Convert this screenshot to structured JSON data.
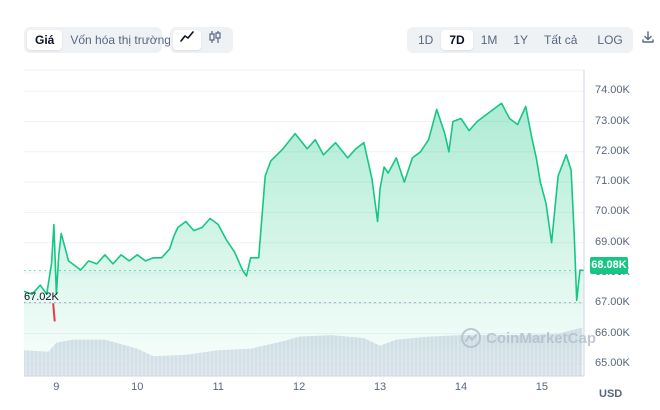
{
  "tabs_left": [
    {
      "label": "Giá",
      "active": true
    },
    {
      "label": "Vốn hóa thị trường",
      "active": false
    }
  ],
  "chart_type_icons": [
    "line-chart-icon",
    "candlestick-icon"
  ],
  "ranges": [
    {
      "label": "1D",
      "active": false
    },
    {
      "label": "7D",
      "active": true
    },
    {
      "label": "1M",
      "active": false
    },
    {
      "label": "1Y",
      "active": false
    },
    {
      "label": "Tất cả",
      "active": false
    }
  ],
  "log_label": "LOG",
  "download_icon": "download-icon",
  "current_price_label": "68.08K",
  "min_price_label": "67.02K",
  "currency_unit": "USD",
  "watermark": "CoinMarketCap",
  "colors": {
    "line": "#16c784",
    "dip": "#ea3943",
    "volume": "#cfd6e4",
    "badge": "#16c784"
  },
  "chart_data": {
    "type": "area",
    "y_unit": "K",
    "ylim": [
      64.6,
      74.7
    ],
    "y_ticks": [
      {
        "value": 74,
        "label": "74.00K"
      },
      {
        "value": 73,
        "label": "73.00K"
      },
      {
        "value": 72,
        "label": "72.00K"
      },
      {
        "value": 71,
        "label": "71.00K"
      },
      {
        "value": 70,
        "label": "70.00K"
      },
      {
        "value": 69,
        "label": "69.00K"
      },
      {
        "value": 68,
        "label": "68.00K"
      },
      {
        "value": 67,
        "label": "67.00K"
      },
      {
        "value": 66,
        "label": "66.00K"
      },
      {
        "value": 65,
        "label": "65.00K"
      }
    ],
    "xlim": [
      8.6,
      15.52
    ],
    "x_ticks": [
      {
        "value": 9,
        "label": "9"
      },
      {
        "value": 10,
        "label": "10"
      },
      {
        "value": 11,
        "label": "11"
      },
      {
        "value": 12,
        "label": "12"
      },
      {
        "value": 13,
        "label": "13"
      },
      {
        "value": 14,
        "label": "14"
      },
      {
        "value": 15,
        "label": "15"
      }
    ],
    "series": [
      {
        "x": [
          8.6,
          8.7,
          8.8,
          8.88,
          8.94,
          8.97,
          9.0,
          9.03,
          9.06,
          9.1,
          9.15,
          9.2,
          9.3,
          9.4,
          9.5,
          9.6,
          9.7,
          9.8,
          9.9,
          10.0,
          10.1,
          10.2,
          10.3,
          10.4,
          10.45,
          10.5,
          10.6,
          10.7,
          10.8,
          10.9,
          11.0,
          11.1,
          11.2,
          11.3,
          11.35,
          11.4,
          11.5,
          11.58,
          11.65,
          11.8,
          11.95,
          12.1,
          12.2,
          12.3,
          12.45,
          12.6,
          12.7,
          12.8,
          12.9,
          12.97,
          13.0,
          13.05,
          13.1,
          13.2,
          13.3,
          13.4,
          13.5,
          13.6,
          13.7,
          13.8,
          13.85,
          13.9,
          14.0,
          14.1,
          14.2,
          14.35,
          14.5,
          14.6,
          14.7,
          14.8,
          14.88,
          14.93,
          14.98,
          15.05,
          15.12,
          15.2,
          15.3,
          15.36,
          15.4,
          15.43,
          15.47,
          15.52
        ],
        "y": [
          67.4,
          67.3,
          67.6,
          67.3,
          68.3,
          69.6,
          67.3,
          68.6,
          69.3,
          68.9,
          68.4,
          68.3,
          68.1,
          68.4,
          68.3,
          68.6,
          68.3,
          68.6,
          68.4,
          68.6,
          68.4,
          68.5,
          68.5,
          68.8,
          69.2,
          69.5,
          69.7,
          69.4,
          69.5,
          69.8,
          69.6,
          69.1,
          68.7,
          68.1,
          67.9,
          68.5,
          68.5,
          71.2,
          71.7,
          72.1,
          72.6,
          72.1,
          72.4,
          71.9,
          72.3,
          71.8,
          72.1,
          72.3,
          71.1,
          69.7,
          70.8,
          71.5,
          71.3,
          71.8,
          71.0,
          71.8,
          72.0,
          72.4,
          73.4,
          72.6,
          72.0,
          73.0,
          73.1,
          72.7,
          73.0,
          73.3,
          73.6,
          73.1,
          72.9,
          73.5,
          72.4,
          71.8,
          71.0,
          70.3,
          69.0,
          71.2,
          71.9,
          71.4,
          69.2,
          67.1,
          68.1,
          68.08
        ]
      }
    ],
    "dip_segment": {
      "x": [
        8.96,
        8.98
      ],
      "y": [
        67.0,
        66.4
      ]
    },
    "min_marker": {
      "value": 67.02
    },
    "last_value": 68.08,
    "volume": {
      "x": [
        8.6,
        8.9,
        9.0,
        9.2,
        9.6,
        10.0,
        10.2,
        10.6,
        11.0,
        11.4,
        11.8,
        12.0,
        12.4,
        12.8,
        13.0,
        13.2,
        13.6,
        14.0,
        14.4,
        14.8,
        15.2,
        15.5
      ],
      "y": [
        65.45,
        65.4,
        65.7,
        65.8,
        65.8,
        65.5,
        65.25,
        65.3,
        65.45,
        65.5,
        65.75,
        65.9,
        65.95,
        65.85,
        65.6,
        65.8,
        65.9,
        65.95,
        65.95,
        65.95,
        66.0,
        66.2
      ]
    },
    "grid": true,
    "legend": "none"
  }
}
